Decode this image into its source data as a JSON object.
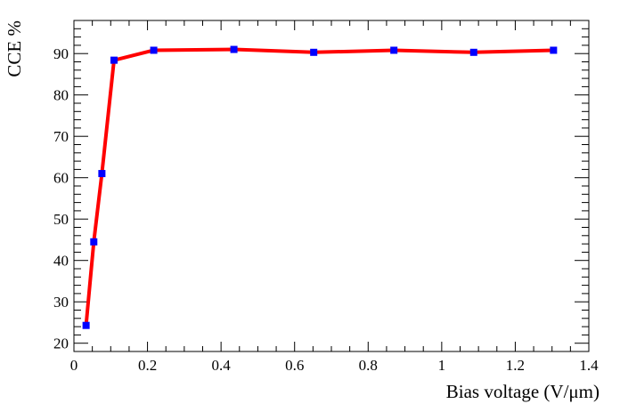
{
  "chart_data": {
    "type": "line",
    "xlabel": "Bias voltage (V/μm)",
    "ylabel": "CCE %",
    "xlim": [
      0,
      1.4
    ],
    "ylim": [
      18,
      98
    ],
    "x_ticks": [
      0,
      0.2,
      0.4,
      0.6,
      0.8,
      1,
      1.2,
      1.4
    ],
    "x_tick_labels": [
      "0",
      "0.2",
      "0.4",
      "0.6",
      "0.8",
      "1",
      "1.2",
      "1.4"
    ],
    "y_ticks": [
      20,
      30,
      40,
      50,
      60,
      70,
      80,
      90
    ],
    "y_tick_labels": [
      "20",
      "30",
      "40",
      "50",
      "60",
      "70",
      "80",
      "90"
    ],
    "grid": false,
    "series": [
      {
        "line_color": "#ff0000",
        "marker_color": "#0000ff",
        "marker": "square",
        "points": [
          {
            "x": 0.033,
            "y": 24.3
          },
          {
            "x": 0.054,
            "y": 44.5
          },
          {
            "x": 0.076,
            "y": 61.0
          },
          {
            "x": 0.109,
            "y": 88.4
          },
          {
            "x": 0.217,
            "y": 90.8
          },
          {
            "x": 0.435,
            "y": 91.0
          },
          {
            "x": 0.652,
            "y": 90.3
          },
          {
            "x": 0.87,
            "y": 90.8
          },
          {
            "x": 1.087,
            "y": 90.3
          },
          {
            "x": 1.304,
            "y": 90.8
          }
        ]
      }
    ]
  }
}
